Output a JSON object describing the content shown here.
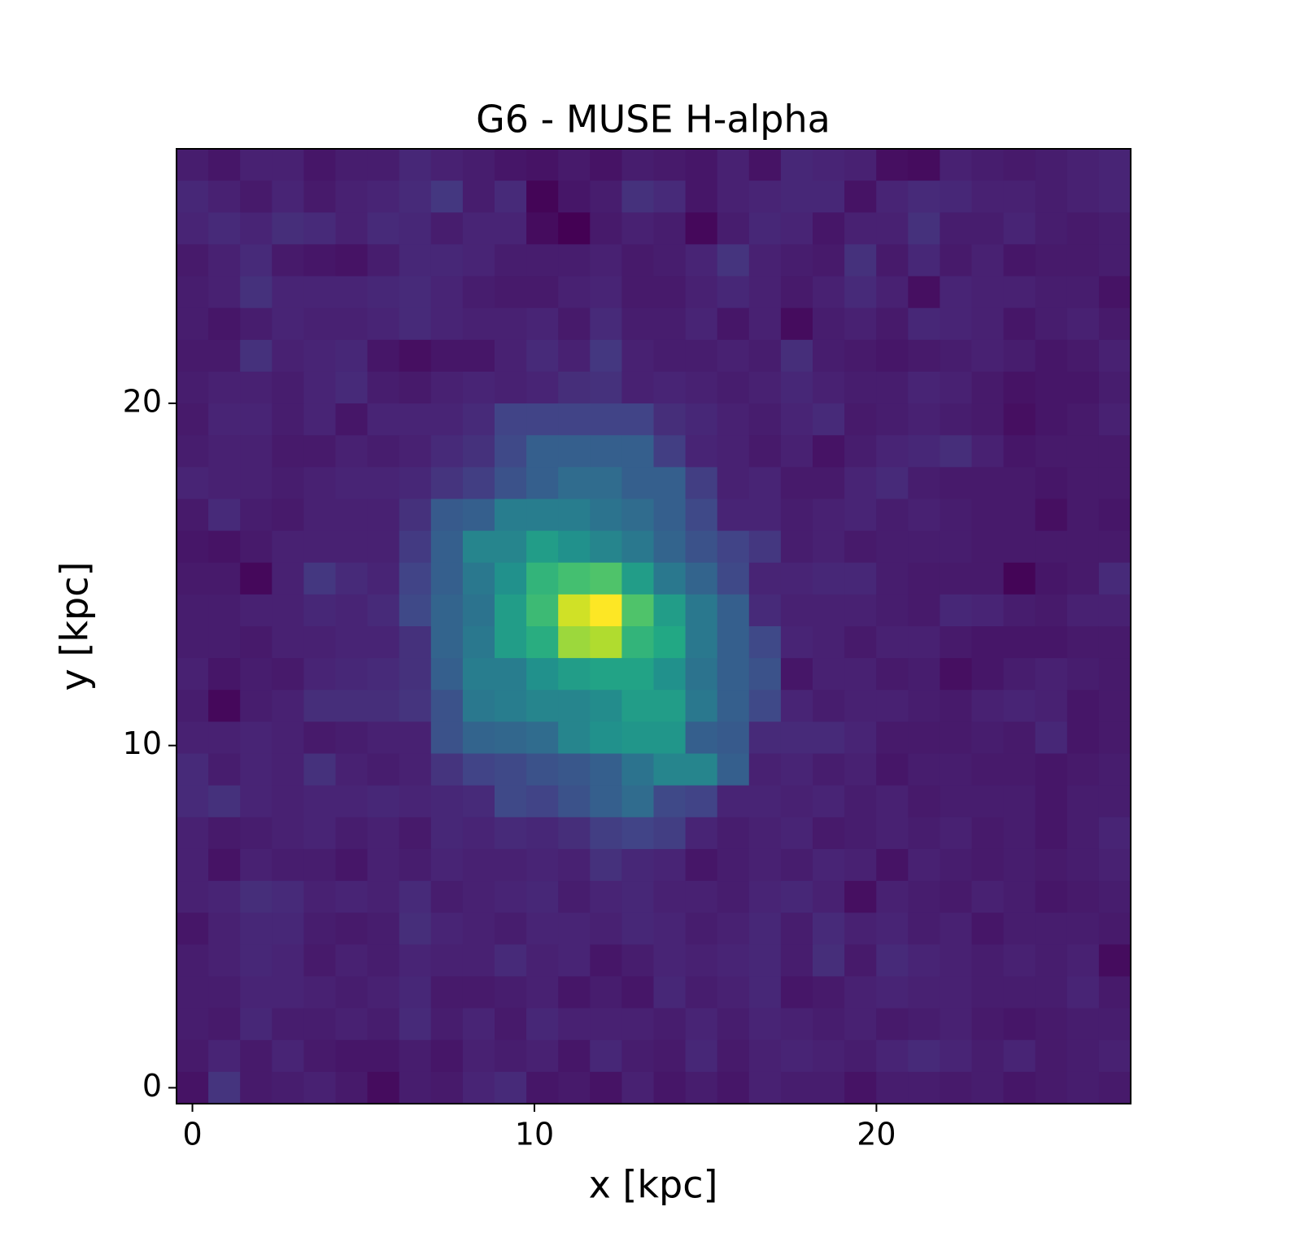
{
  "chart_data": {
    "type": "heatmap",
    "title": "G6 - MUSE H-alpha",
    "x_label": "x [kpc]",
    "y_label": "y [kpc]",
    "colormap": "viridis",
    "x": [
      0,
      0.93,
      1.86,
      2.79,
      3.72,
      4.65,
      5.58,
      6.51,
      7.44,
      8.37,
      9.3,
      10.23,
      11.16,
      12.09,
      13.02,
      13.95,
      14.88,
      15.81,
      16.74,
      17.67,
      18.6,
      19.53,
      20.46,
      21.39,
      22.32,
      23.25,
      24.18,
      25.11,
      26.04,
      26.97
    ],
    "y": [
      26.97,
      26.04,
      25.11,
      24.18,
      23.25,
      22.32,
      21.39,
      20.46,
      19.53,
      18.6,
      17.67,
      16.74,
      15.81,
      14.88,
      13.95,
      13.02,
      12.09,
      11.16,
      10.23,
      9.3,
      8.37,
      7.44,
      6.51,
      5.58,
      4.65,
      3.72,
      2.79,
      1.86,
      0.93,
      0
    ],
    "xlim": [
      -0.465,
      27.435
    ],
    "ylim": [
      -0.465,
      27.435
    ],
    "xticks": [
      0,
      10,
      20
    ],
    "yticks": [
      0,
      10,
      20
    ],
    "z": [
      [
        0.08,
        0.06,
        0.09,
        0.09,
        0.06,
        0.08,
        0.08,
        0.11,
        0.09,
        0.08,
        0.06,
        0.05,
        0.07,
        0.05,
        0.08,
        0.07,
        0.06,
        0.09,
        0.05,
        0.11,
        0.1,
        0.09,
        0.04,
        0.03,
        0.09,
        0.08,
        0.07,
        0.08,
        0.09,
        0.1
      ],
      [
        0.11,
        0.09,
        0.07,
        0.1,
        0.07,
        0.09,
        0.1,
        0.12,
        0.16,
        0.08,
        0.12,
        0.01,
        0.06,
        0.08,
        0.14,
        0.12,
        0.06,
        0.09,
        0.1,
        0.11,
        0.11,
        0.05,
        0.1,
        0.12,
        0.11,
        0.09,
        0.09,
        0.08,
        0.09,
        0.1
      ],
      [
        0.1,
        0.12,
        0.1,
        0.13,
        0.12,
        0.09,
        0.12,
        0.11,
        0.08,
        0.1,
        0.1,
        0.03,
        0.0,
        0.07,
        0.09,
        0.08,
        0.02,
        0.08,
        0.11,
        0.1,
        0.06,
        0.09,
        0.09,
        0.14,
        0.08,
        0.08,
        0.1,
        0.08,
        0.07,
        0.08
      ],
      [
        0.07,
        0.09,
        0.12,
        0.07,
        0.06,
        0.05,
        0.08,
        0.11,
        0.11,
        0.1,
        0.08,
        0.08,
        0.08,
        0.09,
        0.07,
        0.08,
        0.1,
        0.15,
        0.09,
        0.08,
        0.07,
        0.14,
        0.07,
        0.11,
        0.07,
        0.09,
        0.06,
        0.07,
        0.07,
        0.08
      ],
      [
        0.08,
        0.09,
        0.14,
        0.1,
        0.1,
        0.1,
        0.11,
        0.12,
        0.1,
        0.08,
        0.07,
        0.07,
        0.09,
        0.1,
        0.07,
        0.07,
        0.09,
        0.11,
        0.09,
        0.07,
        0.09,
        0.12,
        0.09,
        0.04,
        0.1,
        0.09,
        0.09,
        0.08,
        0.08,
        0.05
      ],
      [
        0.08,
        0.06,
        0.08,
        0.1,
        0.09,
        0.09,
        0.1,
        0.12,
        0.1,
        0.09,
        0.09,
        0.1,
        0.07,
        0.12,
        0.08,
        0.08,
        0.1,
        0.06,
        0.09,
        0.03,
        0.08,
        0.09,
        0.07,
        0.11,
        0.1,
        0.09,
        0.06,
        0.08,
        0.09,
        0.07
      ],
      [
        0.07,
        0.07,
        0.14,
        0.09,
        0.1,
        0.11,
        0.06,
        0.04,
        0.06,
        0.06,
        0.09,
        0.12,
        0.09,
        0.16,
        0.09,
        0.08,
        0.08,
        0.09,
        0.08,
        0.13,
        0.08,
        0.07,
        0.06,
        0.07,
        0.08,
        0.09,
        0.08,
        0.06,
        0.07,
        0.09
      ],
      [
        0.08,
        0.09,
        0.09,
        0.08,
        0.1,
        0.12,
        0.08,
        0.07,
        0.09,
        0.1,
        0.09,
        0.1,
        0.13,
        0.14,
        0.09,
        0.1,
        0.09,
        0.08,
        0.09,
        0.11,
        0.09,
        0.08,
        0.08,
        0.1,
        0.09,
        0.07,
        0.05,
        0.06,
        0.06,
        0.08
      ],
      [
        0.07,
        0.1,
        0.1,
        0.08,
        0.1,
        0.06,
        0.1,
        0.1,
        0.1,
        0.12,
        0.2,
        0.2,
        0.2,
        0.2,
        0.2,
        0.13,
        0.11,
        0.09,
        0.08,
        0.1,
        0.12,
        0.07,
        0.08,
        0.09,
        0.08,
        0.07,
        0.04,
        0.06,
        0.07,
        0.09
      ],
      [
        0.08,
        0.09,
        0.09,
        0.07,
        0.07,
        0.09,
        0.08,
        0.09,
        0.12,
        0.14,
        0.22,
        0.3,
        0.3,
        0.3,
        0.3,
        0.18,
        0.1,
        0.09,
        0.07,
        0.09,
        0.05,
        0.08,
        0.1,
        0.11,
        0.13,
        0.09,
        0.06,
        0.07,
        0.07,
        0.07
      ],
      [
        0.1,
        0.09,
        0.09,
        0.08,
        0.09,
        0.1,
        0.1,
        0.11,
        0.15,
        0.18,
        0.25,
        0.3,
        0.35,
        0.35,
        0.3,
        0.3,
        0.18,
        0.09,
        0.1,
        0.07,
        0.07,
        0.1,
        0.12,
        0.08,
        0.07,
        0.07,
        0.07,
        0.06,
        0.07,
        0.07
      ],
      [
        0.07,
        0.12,
        0.08,
        0.07,
        0.09,
        0.09,
        0.09,
        0.14,
        0.28,
        0.3,
        0.42,
        0.42,
        0.42,
        0.38,
        0.35,
        0.3,
        0.22,
        0.1,
        0.1,
        0.08,
        0.09,
        0.1,
        0.08,
        0.09,
        0.08,
        0.07,
        0.07,
        0.04,
        0.07,
        0.06
      ],
      [
        0.06,
        0.05,
        0.07,
        0.09,
        0.09,
        0.09,
        0.09,
        0.17,
        0.3,
        0.45,
        0.45,
        0.55,
        0.5,
        0.45,
        0.4,
        0.32,
        0.25,
        0.2,
        0.16,
        0.08,
        0.09,
        0.07,
        0.08,
        0.08,
        0.08,
        0.07,
        0.07,
        0.07,
        0.07,
        0.07
      ],
      [
        0.07,
        0.07,
        0.02,
        0.09,
        0.16,
        0.12,
        0.1,
        0.2,
        0.3,
        0.4,
        0.5,
        0.65,
        0.7,
        0.72,
        0.55,
        0.4,
        0.32,
        0.22,
        0.1,
        0.1,
        0.11,
        0.11,
        0.08,
        0.07,
        0.07,
        0.07,
        0.01,
        0.06,
        0.07,
        0.12
      ],
      [
        0.08,
        0.08,
        0.09,
        0.09,
        0.11,
        0.1,
        0.12,
        0.22,
        0.32,
        0.38,
        0.55,
        0.68,
        0.93,
        1.0,
        0.72,
        0.55,
        0.4,
        0.3,
        0.12,
        0.09,
        0.09,
        0.09,
        0.08,
        0.07,
        0.11,
        0.1,
        0.08,
        0.07,
        0.09,
        0.09
      ],
      [
        0.08,
        0.08,
        0.07,
        0.09,
        0.09,
        0.1,
        0.1,
        0.14,
        0.32,
        0.4,
        0.55,
        0.62,
        0.85,
        0.88,
        0.65,
        0.6,
        0.4,
        0.3,
        0.22,
        0.1,
        0.09,
        0.07,
        0.09,
        0.09,
        0.07,
        0.06,
        0.06,
        0.06,
        0.07,
        0.07
      ],
      [
        0.09,
        0.06,
        0.08,
        0.07,
        0.1,
        0.11,
        0.12,
        0.14,
        0.3,
        0.42,
        0.42,
        0.5,
        0.55,
        0.58,
        0.58,
        0.5,
        0.38,
        0.3,
        0.25,
        0.06,
        0.09,
        0.09,
        0.07,
        0.08,
        0.04,
        0.06,
        0.08,
        0.09,
        0.08,
        0.07
      ],
      [
        0.08,
        0.02,
        0.08,
        0.09,
        0.13,
        0.13,
        0.13,
        0.15,
        0.25,
        0.4,
        0.42,
        0.45,
        0.45,
        0.48,
        0.55,
        0.55,
        0.4,
        0.3,
        0.22,
        0.1,
        0.08,
        0.09,
        0.09,
        0.08,
        0.07,
        0.09,
        0.1,
        0.09,
        0.06,
        0.07
      ],
      [
        0.09,
        0.09,
        0.1,
        0.09,
        0.07,
        0.08,
        0.09,
        0.09,
        0.25,
        0.32,
        0.33,
        0.35,
        0.45,
        0.5,
        0.52,
        0.52,
        0.3,
        0.28,
        0.12,
        0.12,
        0.12,
        0.1,
        0.07,
        0.07,
        0.07,
        0.08,
        0.07,
        0.11,
        0.06,
        0.07
      ],
      [
        0.12,
        0.08,
        0.1,
        0.09,
        0.14,
        0.09,
        0.08,
        0.09,
        0.15,
        0.2,
        0.22,
        0.25,
        0.27,
        0.3,
        0.38,
        0.45,
        0.45,
        0.3,
        0.09,
        0.1,
        0.08,
        0.09,
        0.06,
        0.08,
        0.08,
        0.07,
        0.07,
        0.06,
        0.07,
        0.08
      ],
      [
        0.12,
        0.14,
        0.1,
        0.09,
        0.1,
        0.1,
        0.11,
        0.1,
        0.11,
        0.12,
        0.22,
        0.2,
        0.25,
        0.3,
        0.35,
        0.22,
        0.2,
        0.1,
        0.1,
        0.09,
        0.1,
        0.08,
        0.09,
        0.07,
        0.08,
        0.08,
        0.08,
        0.06,
        0.08,
        0.08
      ],
      [
        0.09,
        0.07,
        0.08,
        0.09,
        0.1,
        0.08,
        0.09,
        0.07,
        0.11,
        0.1,
        0.12,
        0.11,
        0.13,
        0.18,
        0.2,
        0.18,
        0.1,
        0.08,
        0.09,
        0.1,
        0.07,
        0.08,
        0.09,
        0.08,
        0.09,
        0.07,
        0.08,
        0.06,
        0.08,
        0.1
      ],
      [
        0.09,
        0.05,
        0.09,
        0.08,
        0.08,
        0.06,
        0.09,
        0.08,
        0.1,
        0.09,
        0.09,
        0.1,
        0.09,
        0.14,
        0.11,
        0.1,
        0.06,
        0.08,
        0.09,
        0.08,
        0.1,
        0.09,
        0.05,
        0.09,
        0.08,
        0.07,
        0.08,
        0.07,
        0.08,
        0.09
      ],
      [
        0.09,
        0.1,
        0.13,
        0.12,
        0.09,
        0.1,
        0.09,
        0.12,
        0.08,
        0.09,
        0.1,
        0.11,
        0.08,
        0.1,
        0.11,
        0.09,
        0.09,
        0.08,
        0.1,
        0.11,
        0.09,
        0.04,
        0.09,
        0.08,
        0.07,
        0.09,
        0.08,
        0.06,
        0.07,
        0.08
      ],
      [
        0.06,
        0.09,
        0.11,
        0.11,
        0.08,
        0.07,
        0.08,
        0.13,
        0.1,
        0.09,
        0.08,
        0.1,
        0.1,
        0.09,
        0.11,
        0.1,
        0.08,
        0.09,
        0.11,
        0.08,
        0.12,
        0.09,
        0.1,
        0.08,
        0.09,
        0.06,
        0.08,
        0.08,
        0.08,
        0.07
      ],
      [
        0.08,
        0.09,
        0.11,
        0.1,
        0.07,
        0.09,
        0.08,
        0.1,
        0.09,
        0.09,
        0.12,
        0.09,
        0.1,
        0.06,
        0.08,
        0.1,
        0.09,
        0.1,
        0.11,
        0.08,
        0.13,
        0.07,
        0.12,
        0.1,
        0.09,
        0.08,
        0.09,
        0.08,
        0.09,
        0.03
      ],
      [
        0.08,
        0.08,
        0.1,
        0.1,
        0.09,
        0.08,
        0.09,
        0.11,
        0.07,
        0.07,
        0.08,
        0.09,
        0.06,
        0.08,
        0.06,
        0.11,
        0.08,
        0.09,
        0.11,
        0.06,
        0.07,
        0.09,
        0.1,
        0.09,
        0.09,
        0.08,
        0.08,
        0.08,
        0.1,
        0.07
      ],
      [
        0.08,
        0.07,
        0.11,
        0.08,
        0.08,
        0.09,
        0.08,
        0.12,
        0.08,
        0.1,
        0.07,
        0.11,
        0.09,
        0.09,
        0.09,
        0.08,
        0.1,
        0.08,
        0.1,
        0.09,
        0.08,
        0.09,
        0.07,
        0.08,
        0.09,
        0.07,
        0.06,
        0.07,
        0.08,
        0.08
      ],
      [
        0.07,
        0.1,
        0.07,
        0.1,
        0.07,
        0.06,
        0.06,
        0.08,
        0.06,
        0.09,
        0.08,
        0.09,
        0.06,
        0.11,
        0.08,
        0.07,
        0.11,
        0.07,
        0.09,
        0.1,
        0.09,
        0.08,
        0.1,
        0.12,
        0.1,
        0.08,
        0.1,
        0.07,
        0.08,
        0.09
      ],
      [
        0.05,
        0.15,
        0.07,
        0.08,
        0.09,
        0.07,
        0.03,
        0.08,
        0.07,
        0.1,
        0.12,
        0.06,
        0.07,
        0.05,
        0.09,
        0.06,
        0.08,
        0.06,
        0.09,
        0.08,
        0.08,
        0.05,
        0.08,
        0.08,
        0.07,
        0.08,
        0.06,
        0.07,
        0.08,
        0.07
      ]
    ]
  }
}
